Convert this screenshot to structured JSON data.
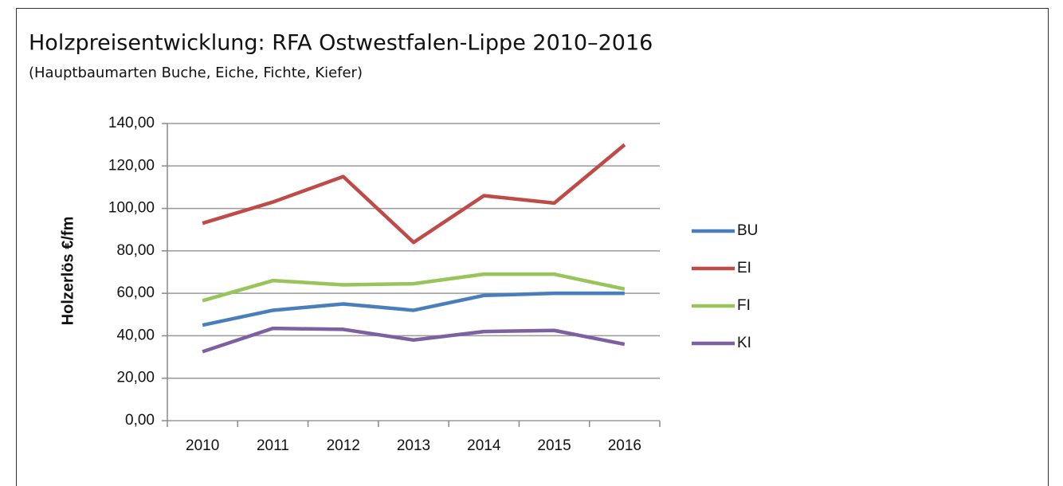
{
  "chart_data": {
    "type": "line",
    "title": "Holzpreisentwicklung: RFA Ostwestfalen-Lippe 2010–2016",
    "subtitle": "(Hauptbaumarten Buche, Eiche, Fichte, Kiefer)",
    "y_label": "Holzerlös €/fm",
    "categories": [
      "2010",
      "2011",
      "2012",
      "2013",
      "2014",
      "2015",
      "2016"
    ],
    "series": [
      {
        "name": "BU",
        "color": "#4a7ebb",
        "values": [
          45,
          52,
          55,
          52,
          59,
          60,
          60
        ]
      },
      {
        "name": "EI",
        "color": "#be4b48",
        "values": [
          93,
          103,
          115,
          84,
          106,
          102.5,
          130
        ]
      },
      {
        "name": "FI",
        "color": "#98c45a",
        "values": [
          56.5,
          66,
          64,
          64.5,
          69,
          69,
          62
        ]
      },
      {
        "name": "KI",
        "color": "#7d60a0",
        "values": [
          32.5,
          43.5,
          43,
          38,
          42,
          42.5,
          36
        ]
      }
    ],
    "ylim": [
      0,
      140
    ],
    "yticks": [
      {
        "value": 0,
        "label": "0,00"
      },
      {
        "value": 20,
        "label": "20,00"
      },
      {
        "value": 40,
        "label": "40,00"
      },
      {
        "value": 60,
        "label": "60,00"
      },
      {
        "value": 80,
        "label": "80,00"
      },
      {
        "value": 100,
        "label": "100,00"
      },
      {
        "value": 120,
        "label": "120,00"
      },
      {
        "value": 140,
        "label": "140,00"
      }
    ],
    "grid": true,
    "legend": "right"
  }
}
